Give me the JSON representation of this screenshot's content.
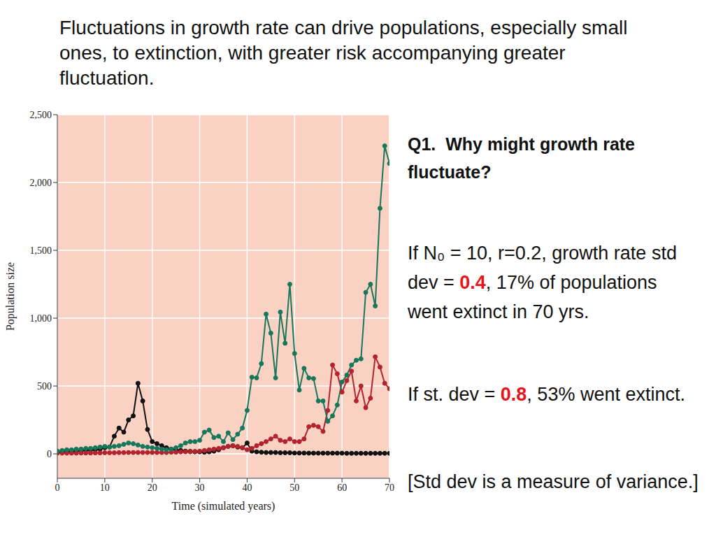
{
  "chart_data": {
    "type": "line",
    "title": "Fluctuations in growth rate can drive populations, especially small ones, to extinction, with greater risk accompanying greater fluctuation.",
    "x_label": "Time (simulated years)",
    "y_label": "Population size",
    "x": [
      0,
      1,
      2,
      3,
      4,
      5,
      6,
      7,
      8,
      9,
      10,
      11,
      12,
      13,
      14,
      15,
      16,
      17,
      18,
      19,
      20,
      21,
      22,
      23,
      24,
      25,
      26,
      27,
      28,
      29,
      30,
      31,
      32,
      33,
      34,
      35,
      36,
      37,
      38,
      39,
      40,
      41,
      42,
      43,
      44,
      45,
      46,
      47,
      48,
      49,
      50,
      51,
      52,
      53,
      54,
      55,
      56,
      57,
      58,
      59,
      60,
      61,
      62,
      63,
      64,
      65,
      66,
      67,
      68,
      69,
      70
    ],
    "xlim": [
      0,
      70
    ],
    "xticks": [
      0,
      10,
      20,
      30,
      40,
      50,
      60,
      70
    ],
    "ylim": [
      -180,
      2500
    ],
    "yticks": [
      0,
      500,
      {
        "value": 1000,
        "label": "1,000"
      },
      {
        "value": 1500,
        "label": "1,500"
      },
      {
        "value": 2000,
        "label": "2,000"
      },
      {
        "value": 2500,
        "label": "2,500"
      }
    ],
    "grid": true,
    "marker": "circle",
    "series": [
      {
        "color": "#111111",
        "values": [
          10,
          12,
          15,
          18,
          20,
          22,
          25,
          28,
          30,
          35,
          45,
          50,
          130,
          190,
          160,
          250,
          280,
          520,
          390,
          180,
          90,
          75,
          60,
          45,
          35,
          30,
          25,
          20,
          18,
          15,
          15,
          12,
          15,
          20,
          30,
          45,
          55,
          60,
          50,
          45,
          80,
          20,
          15,
          12,
          10,
          10,
          10,
          8,
          8,
          8,
          6,
          6,
          6,
          5,
          5,
          5,
          5,
          5,
          5,
          5,
          5,
          4,
          4,
          4,
          4,
          4,
          4,
          4,
          4,
          4,
          4
        ]
      },
      {
        "color": "#b3232e",
        "values": [
          5,
          5,
          5,
          5,
          5,
          6,
          6,
          6,
          7,
          7,
          8,
          8,
          8,
          9,
          9,
          10,
          10,
          10,
          10,
          10,
          10,
          10,
          10,
          10,
          12,
          12,
          14,
          15,
          15,
          18,
          20,
          25,
          30,
          35,
          40,
          45,
          55,
          60,
          55,
          45,
          30,
          40,
          60,
          75,
          90,
          110,
          130,
          100,
          90,
          110,
          90,
          90,
          110,
          200,
          210,
          200,
          165,
          320,
          655,
          590,
          455,
          540,
          610,
          390,
          500,
          340,
          410,
          715,
          640,
          520,
          480
        ]
      },
      {
        "color": "#17775a",
        "values": [
          20,
          25,
          30,
          30,
          35,
          35,
          40,
          40,
          45,
          50,
          55,
          50,
          55,
          60,
          70,
          80,
          75,
          65,
          55,
          50,
          45,
          40,
          35,
          30,
          35,
          45,
          60,
          80,
          90,
          90,
          100,
          160,
          175,
          120,
          130,
          90,
          155,
          105,
          145,
          190,
          320,
          565,
          560,
          665,
          1030,
          890,
          560,
          1045,
          815,
          1250,
          740,
          470,
          630,
          560,
          555,
          390,
          390,
          240,
          280,
          360,
          530,
          580,
          655,
          690,
          700,
          1190,
          1250,
          1090,
          1810,
          2270,
          2140
        ]
      }
    ],
    "annotations": [
      [
        {
          "text": "Q1.  Why might growth rate fluctuate?"
        }
      ],
      [
        {
          "text": "If N₀ = 10, r=0.2, growth rate std dev = "
        },
        {
          "text": "0.4",
          "color": "#e8141c"
        },
        {
          "text": ", 17% of populations went extinct in 70 yrs."
        }
      ],
      [
        {
          "text": "If st. dev = "
        },
        {
          "text": "0.8",
          "color": "#e8141c"
        },
        {
          "text": ", 53% went extinct."
        }
      ],
      [
        {
          "text": "[Std dev is a measure of variance.]"
        }
      ]
    ]
  }
}
